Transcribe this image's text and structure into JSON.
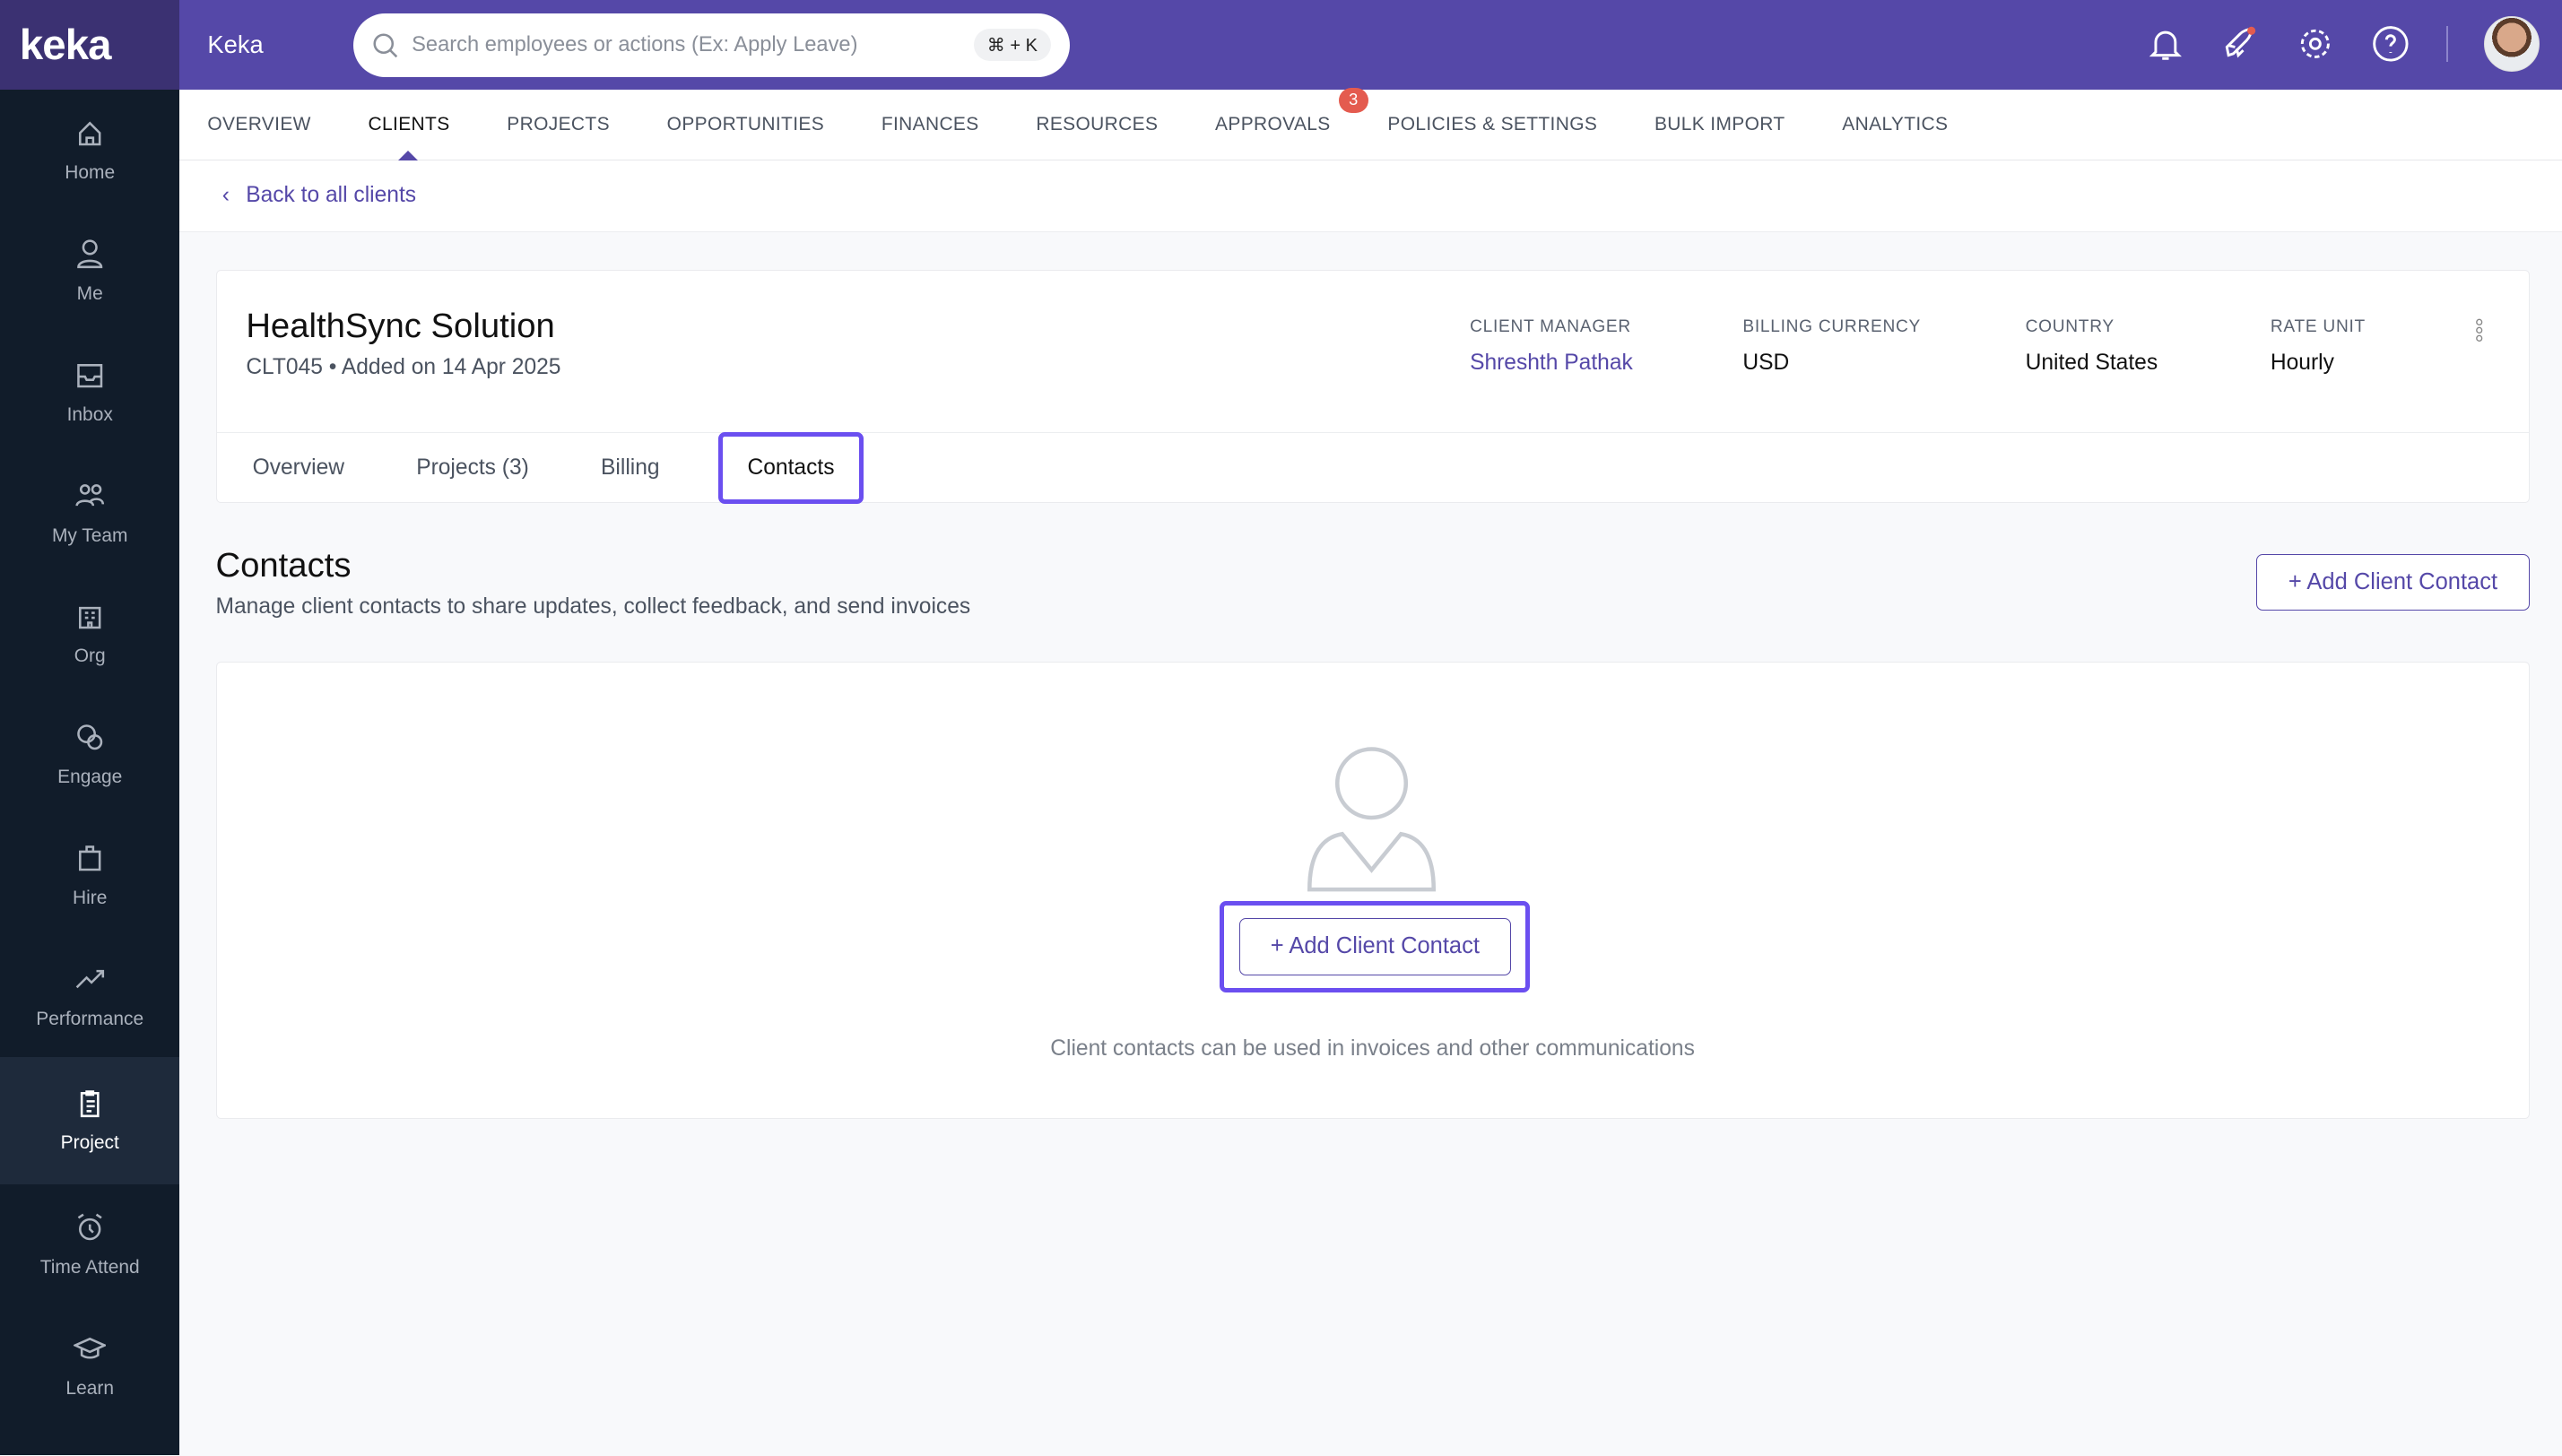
{
  "brand": {
    "logo": "keka",
    "app_title": "Keka"
  },
  "search": {
    "placeholder": "Search employees or actions (Ex: Apply Leave)",
    "shortcut": "⌘ + K"
  },
  "topbar_icons": [
    "bell-icon",
    "rocket-icon",
    "gear-icon",
    "help-icon",
    "avatar"
  ],
  "sidebar": {
    "items": [
      {
        "label": "Home",
        "icon": "home-icon"
      },
      {
        "label": "Me",
        "icon": "user-icon"
      },
      {
        "label": "Inbox",
        "icon": "inbox-icon"
      },
      {
        "label": "My Team",
        "icon": "team-icon"
      },
      {
        "label": "Org",
        "icon": "org-icon"
      },
      {
        "label": "Engage",
        "icon": "engage-icon"
      },
      {
        "label": "Hire",
        "icon": "briefcase-icon"
      },
      {
        "label": "Performance",
        "icon": "trend-icon"
      },
      {
        "label": "Project",
        "icon": "clipboard-icon",
        "active": true
      },
      {
        "label": "Time Attend",
        "icon": "alarm-icon"
      },
      {
        "label": "Learn",
        "icon": "graduation-icon"
      }
    ]
  },
  "nav": {
    "items": [
      {
        "label": "OVERVIEW"
      },
      {
        "label": "CLIENTS",
        "active": true
      },
      {
        "label": "PROJECTS"
      },
      {
        "label": "OPPORTUNITIES"
      },
      {
        "label": "FINANCES"
      },
      {
        "label": "RESOURCES"
      },
      {
        "label": "APPROVALS",
        "badge": "3"
      },
      {
        "label": "POLICIES & SETTINGS"
      },
      {
        "label": "BULK IMPORT"
      },
      {
        "label": "ANALYTICS"
      }
    ]
  },
  "back_link": "Back to all clients",
  "client": {
    "name": "HealthSync Solution",
    "subtitle": "CLT045 • Added on 14 Apr 2025",
    "meta": [
      {
        "label": "CLIENT MANAGER",
        "value": "Shreshth Pathak"
      },
      {
        "label": "BILLING CURRENCY",
        "value": "USD"
      },
      {
        "label": "COUNTRY",
        "value": "United States"
      },
      {
        "label": "RATE UNIT",
        "value": "Hourly"
      }
    ],
    "tabs": [
      {
        "label": "Overview"
      },
      {
        "label": "Projects (3)"
      },
      {
        "label": "Billing"
      },
      {
        "label": "Contacts",
        "active": true
      }
    ]
  },
  "contacts": {
    "title": "Contacts",
    "subtitle": "Manage client contacts to share updates, collect feedback, and send invoices",
    "add_button": "+ Add Client Contact",
    "empty_button": "+ Add Client Contact",
    "empty_note": "Client contacts can be used in invoices and other communications"
  },
  "colors": {
    "accent": "#5548a8",
    "highlight": "#6b4ff0",
    "sidebar": "#111c2a",
    "badge": "#e45b4f"
  }
}
